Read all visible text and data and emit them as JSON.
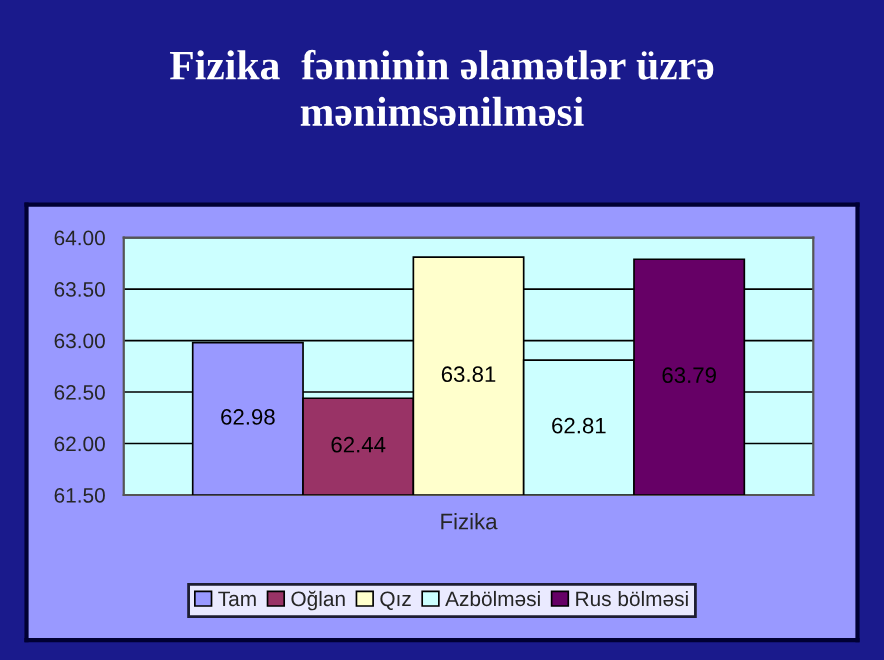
{
  "chart_data": {
    "type": "bar",
    "title": "Fizika  fənninin əlamətlər üzrə\nmənimsənilməsi",
    "categories": [
      "Fizika"
    ],
    "series": [
      {
        "name": "Tam",
        "color": "#9999ff",
        "values": [
          62.98
        ]
      },
      {
        "name": "Oğlan",
        "color": "#993366",
        "values": [
          62.44
        ]
      },
      {
        "name": "Qız",
        "color": "#ffffcc",
        "values": [
          63.81
        ]
      },
      {
        "name": "Azbölməsi",
        "color": "#ccffff",
        "values": [
          62.81
        ]
      },
      {
        "name": "Rus bölməsi",
        "color": "#660066",
        "values": [
          63.79
        ]
      }
    ],
    "ylim": [
      61.5,
      64.0
    ],
    "yticks": [
      {
        "value": 61.5,
        "label": "61.50"
      },
      {
        "value": 62.0,
        "label": "62.00"
      },
      {
        "value": 62.5,
        "label": "62.50"
      },
      {
        "value": 63.0,
        "label": "63.00"
      },
      {
        "value": 63.5,
        "label": "63.50"
      },
      {
        "value": 64.0,
        "label": "64.00"
      }
    ],
    "grid": "y",
    "legend": "bottom",
    "data_labels": true
  }
}
